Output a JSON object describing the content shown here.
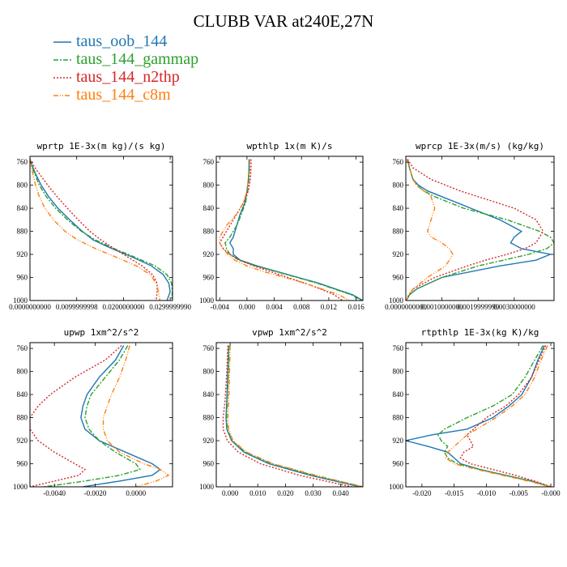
{
  "title": "CLUBB VAR at240E,27N",
  "legend": [
    {
      "name": "taus_oob_144",
      "color": "#1f77b4",
      "dash": ""
    },
    {
      "name": "taus_144_gammap",
      "color": "#2ca02c",
      "dash": "6,2,2,2"
    },
    {
      "name": "taus_144_n2thp",
      "color": "#d62728",
      "dash": "2,2"
    },
    {
      "name": "taus_144_c8m",
      "color": "#ff7f0e",
      "dash": "6,2,1,2,1,2"
    }
  ],
  "chart_data": [
    {
      "type": "line",
      "title": "wprtp  1E-3x(m kg)/(s kg)",
      "xlim": [
        0.0,
        0.0305
      ],
      "ylim": [
        1000,
        750
      ],
      "xticks": [
        0.0,
        0.01,
        0.02,
        0.03
      ],
      "xtick_labels": [
        "0.0000000000",
        "0.0099999998",
        "0.0200000000",
        "0.0299999990"
      ],
      "yticks": [
        760,
        800,
        840,
        880,
        920,
        960,
        1000
      ],
      "y": [
        755,
        765,
        780,
        800,
        820,
        840,
        860,
        880,
        895,
        910,
        925,
        940,
        955,
        970,
        985,
        1000
      ],
      "series": [
        {
          "name": "taus_oob_144",
          "values": [
            0.0,
            0.0004,
            0.0012,
            0.0024,
            0.004,
            0.006,
            0.0085,
            0.0112,
            0.0135,
            0.0175,
            0.022,
            0.026,
            0.0285,
            0.0297,
            0.03,
            0.0293
          ]
        },
        {
          "name": "taus_144_gammap",
          "values": [
            0.0,
            0.0003,
            0.001,
            0.002,
            0.0035,
            0.0055,
            0.008,
            0.011,
            0.014,
            0.018,
            0.0225,
            0.0268,
            0.0293,
            0.0303,
            0.0305,
            0.0302
          ]
        },
        {
          "name": "taus_144_n2thp",
          "values": [
            0.0,
            0.0007,
            0.002,
            0.0038,
            0.0058,
            0.008,
            0.0103,
            0.0128,
            0.0152,
            0.018,
            0.021,
            0.024,
            0.0262,
            0.0272,
            0.0272,
            0.027
          ]
        },
        {
          "name": "taus_144_c8m",
          "values": [
            0.0,
            0.0002,
            0.0006,
            0.0012,
            0.002,
            0.0032,
            0.005,
            0.0075,
            0.0102,
            0.014,
            0.0185,
            0.0228,
            0.0257,
            0.027,
            0.0275,
            0.0278
          ]
        }
      ]
    },
    {
      "type": "line",
      "title": "wpthlp  1x(m K)/s",
      "xlim": [
        -0.0045,
        0.017
      ],
      "ylim": [
        1000,
        750
      ],
      "xticks": [
        -0.004,
        0.0,
        0.004,
        0.008,
        0.012,
        0.016
      ],
      "xtick_labels": [
        "-0.004",
        "0.000",
        "0.004",
        "0.008",
        "0.012",
        "0.016"
      ],
      "yticks": [
        760,
        800,
        840,
        880,
        920,
        960,
        1000
      ],
      "y": [
        755,
        770,
        790,
        810,
        830,
        850,
        870,
        890,
        900,
        910,
        920,
        930,
        940,
        950,
        960,
        970,
        980,
        990,
        1000
      ],
      "series": [
        {
          "name": "taus_oob_144",
          "values": [
            0.0003,
            0.0003,
            0.0002,
            0.0,
            -0.0003,
            -0.001,
            -0.0015,
            -0.002,
            -0.0025,
            -0.002,
            -0.002,
            -0.001,
            0.0015,
            0.0045,
            0.0075,
            0.0105,
            0.013,
            0.0155,
            0.017
          ]
        },
        {
          "name": "taus_144_gammap",
          "values": [
            0.0004,
            0.0004,
            0.0003,
            0.0001,
            -0.0002,
            -0.0008,
            -0.0015,
            -0.0025,
            -0.0032,
            -0.003,
            -0.0025,
            -0.0012,
            0.0013,
            0.0043,
            0.0073,
            0.0103,
            0.0128,
            0.0153,
            0.0168
          ]
        },
        {
          "name": "taus_144_n2thp",
          "values": [
            0.0006,
            0.0006,
            0.0005,
            0.0002,
            -0.0005,
            -0.0015,
            -0.0025,
            -0.0035,
            -0.004,
            -0.0035,
            -0.0025,
            -0.001,
            0.001,
            0.0035,
            0.006,
            0.0085,
            0.0108,
            0.0128,
            0.014
          ]
        },
        {
          "name": "taus_144_c8m",
          "values": [
            0.0004,
            0.0004,
            0.0002,
            0.0,
            -0.0005,
            -0.0015,
            -0.003,
            -0.004,
            -0.004,
            -0.0035,
            -0.0028,
            -0.0018,
            0.0,
            0.0025,
            0.0055,
            0.0085,
            0.011,
            0.0135,
            0.015
          ]
        }
      ]
    },
    {
      "type": "line",
      "title": "wprcp  1E-3x(m/s) (kg/kg)",
      "xlim": [
        0.0,
        0.0041
      ],
      "ylim": [
        1000,
        750
      ],
      "xticks": [
        0.0,
        0.001,
        0.002,
        0.003
      ],
      "xtick_labels": [
        "0.0000000000",
        "0.0010000000",
        "0.0019999999",
        "0.0030000000"
      ],
      "yticks": [
        760,
        800,
        840,
        880,
        920,
        960,
        1000
      ],
      "y": [
        755,
        770,
        790,
        800,
        810,
        820,
        840,
        860,
        880,
        890,
        900,
        910,
        920,
        930,
        940,
        960,
        980,
        990,
        1000
      ],
      "series": [
        {
          "name": "taus_oob_144",
          "values": [
            5e-05,
            0.0001,
            0.0002,
            0.00035,
            0.0006,
            0.001,
            0.0018,
            0.0026,
            0.0032,
            0.003,
            0.0029,
            0.0032,
            0.004,
            0.0036,
            0.0026,
            0.001,
            0.0003,
            0.0001,
            2e-05
          ]
        },
        {
          "name": "taus_144_gammap",
          "values": [
            3e-05,
            0.0001,
            0.0002,
            0.0003,
            0.0005,
            0.0008,
            0.0016,
            0.0028,
            0.0037,
            0.004,
            0.0041,
            0.0039,
            0.0034,
            0.0027,
            0.002,
            0.001,
            0.0003,
            0.0001,
            2e-05
          ]
        },
        {
          "name": "taus_144_n2thp",
          "values": [
            5e-05,
            0.0002,
            0.0007,
            0.0011,
            0.0015,
            0.002,
            0.003,
            0.0036,
            0.0038,
            0.0037,
            0.0036,
            0.0033,
            0.0028,
            0.0022,
            0.0017,
            0.0008,
            0.0002,
            8e-05,
            2e-05
          ]
        },
        {
          "name": "taus_144_c8m",
          "values": [
            3e-05,
            0.0001,
            0.0002,
            0.0003,
            0.0005,
            0.0007,
            0.0008,
            0.0007,
            0.0006,
            0.0007,
            0.001,
            0.0012,
            0.0013,
            0.0012,
            0.0011,
            0.0006,
            0.0002,
            8e-05,
            2e-05
          ]
        }
      ]
    },
    {
      "type": "line",
      "title": "upwp  1xm^2/s^2",
      "xlim": [
        -0.0052,
        0.0018
      ],
      "ylim": [
        1000,
        750
      ],
      "xticks": [
        -0.004,
        -0.002,
        0.0
      ],
      "xtick_labels": [
        "-0.0040",
        "-0.0020",
        "0.0000"
      ],
      "yticks": [
        760,
        800,
        840,
        880,
        920,
        960,
        1000
      ],
      "y": [
        755,
        780,
        810,
        840,
        860,
        880,
        900,
        920,
        940,
        960,
        970,
        980,
        990,
        1000
      ],
      "series": [
        {
          "name": "taus_oob_144",
          "values": [
            -0.0006,
            -0.001,
            -0.0018,
            -0.0024,
            -0.0026,
            -0.0027,
            -0.0025,
            -0.0018,
            -0.0005,
            0.0008,
            0.0012,
            0.0008,
            -0.0008,
            -0.0026
          ]
        },
        {
          "name": "taus_144_gammap",
          "values": [
            -0.0004,
            -0.0008,
            -0.0015,
            -0.0022,
            -0.0024,
            -0.0025,
            -0.0023,
            -0.0018,
            -0.001,
            0.0,
            0.0002,
            -0.0008,
            -0.0025,
            -0.0045
          ]
        },
        {
          "name": "taus_144_n2thp",
          "values": [
            -0.0007,
            -0.0015,
            -0.003,
            -0.0042,
            -0.0048,
            -0.0052,
            -0.0052,
            -0.0048,
            -0.004,
            -0.003,
            -0.0025,
            -0.0028,
            -0.004,
            -0.0052
          ]
        },
        {
          "name": "taus_144_c8m",
          "values": [
            -0.0003,
            -0.0005,
            -0.0008,
            -0.0012,
            -0.0014,
            -0.0016,
            -0.0016,
            -0.0014,
            -0.0008,
            0.0004,
            0.0012,
            0.0016,
            0.001,
            0.0
          ]
        }
      ]
    },
    {
      "type": "line",
      "title": "vpwp  1xm^2/s^2",
      "xlim": [
        -0.005,
        0.048
      ],
      "ylim": [
        1000,
        750
      ],
      "xticks": [
        0.0,
        0.01,
        0.02,
        0.03,
        0.04
      ],
      "xtick_labels": [
        "0.000",
        "0.010",
        "0.020",
        "0.030",
        "0.040"
      ],
      "yticks": [
        760,
        800,
        840,
        880,
        920,
        960,
        1000
      ],
      "y": [
        755,
        800,
        850,
        880,
        900,
        920,
        940,
        960,
        980,
        1000
      ],
      "series": [
        {
          "name": "taus_oob_144",
          "values": [
            -0.0005,
            -0.0008,
            -0.0012,
            -0.0015,
            -0.0012,
            0.0005,
            0.005,
            0.014,
            0.029,
            0.047
          ]
        },
        {
          "name": "taus_144_gammap",
          "values": [
            -0.0004,
            -0.0006,
            -0.001,
            -0.0013,
            -0.001,
            0.0007,
            0.0055,
            0.015,
            0.03,
            0.048
          ]
        },
        {
          "name": "taus_144_n2thp",
          "values": [
            -0.0008,
            -0.0012,
            -0.0018,
            -0.0025,
            -0.0025,
            -0.001,
            0.003,
            0.011,
            0.025,
            0.044
          ]
        },
        {
          "name": "taus_144_c8m",
          "values": [
            0.0,
            -0.0002,
            -0.0005,
            -0.0008,
            -0.0005,
            0.001,
            0.006,
            0.0155,
            0.031,
            0.048
          ]
        }
      ]
    },
    {
      "type": "line",
      "title": "rtpthlp  1E-3x(kg K)/kg",
      "xlim": [
        -0.0225,
        0.0005
      ],
      "ylim": [
        1000,
        750
      ],
      "xticks": [
        -0.02,
        -0.015,
        -0.01,
        -0.005,
        0.0
      ],
      "xtick_labels": [
        "-0.020",
        "-0.015",
        "-0.010",
        "-0.005",
        "-0.000"
      ],
      "yticks": [
        760,
        800,
        840,
        880,
        920,
        960,
        1000
      ],
      "y": [
        755,
        780,
        810,
        840,
        860,
        880,
        900,
        910,
        920,
        930,
        940,
        950,
        960,
        970,
        980,
        990,
        1000
      ],
      "series": [
        {
          "name": "taus_oob_144",
          "values": [
            -0.001,
            -0.002,
            -0.003,
            -0.0045,
            -0.0065,
            -0.009,
            -0.013,
            -0.0185,
            -0.0225,
            -0.019,
            -0.016,
            -0.015,
            -0.014,
            -0.011,
            -0.007,
            -0.003,
            0.0
          ]
        },
        {
          "name": "taus_144_gammap",
          "values": [
            -0.0012,
            -0.0025,
            -0.004,
            -0.006,
            -0.009,
            -0.013,
            -0.0165,
            -0.0175,
            -0.017,
            -0.016,
            -0.0165,
            -0.016,
            -0.0145,
            -0.011,
            -0.007,
            -0.003,
            0.0
          ]
        },
        {
          "name": "taus_144_n2thp",
          "values": [
            -0.0008,
            -0.0018,
            -0.003,
            -0.005,
            -0.007,
            -0.01,
            -0.012,
            -0.013,
            -0.0125,
            -0.012,
            -0.0135,
            -0.014,
            -0.0125,
            -0.009,
            -0.0055,
            -0.0025,
            0.0
          ]
        },
        {
          "name": "taus_144_c8m",
          "values": [
            -0.0005,
            -0.0015,
            -0.0025,
            -0.004,
            -0.006,
            -0.0085,
            -0.0115,
            -0.013,
            -0.014,
            -0.015,
            -0.016,
            -0.0163,
            -0.015,
            -0.0115,
            -0.0075,
            -0.0035,
            0.0
          ]
        }
      ]
    }
  ]
}
